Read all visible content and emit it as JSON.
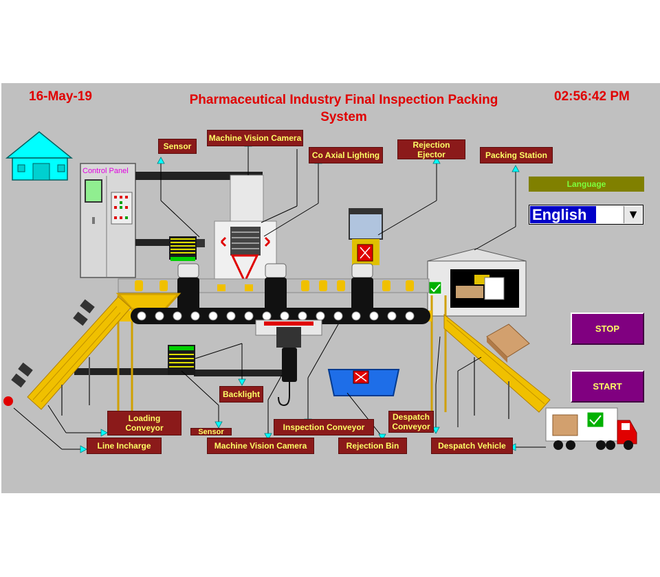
{
  "header": {
    "date": "16-May-19",
    "title": "Pharmaceutical Industry Final Inspection Packing System",
    "time": "02:56:42 PM"
  },
  "labels": {
    "sensor_top": "Sensor",
    "machine_vision_top": "Machine Vision Camera",
    "co_axial": "Co Axial Lighting",
    "rejection_ejector": "Rejection Ejector",
    "packing_station": "Packing Station",
    "backlight": "Backlight",
    "loading_conveyor": "Loading Conveyor",
    "sensor_bottom": "Sensor",
    "inspection_conveyor": "Inspection Conveyor",
    "despatch_conveyor": "Despatch Conveyor",
    "line_incharge": "Line Incharge",
    "machine_vision_bottom": "Machine Vision Camera",
    "rejection_bin": "Rejection Bin",
    "despatch_vehicle": "Despatch Vehicle",
    "control_panel": "Control Panel"
  },
  "language": {
    "label": "Language",
    "selected": "English"
  },
  "buttons": {
    "stop": "STOP",
    "start": "START"
  },
  "colors": {
    "panel_bg": "#c0c0c0",
    "label_bg": "#8b1a1a",
    "label_text": "#ffff66",
    "header_text": "#e00000",
    "button_bg": "#800080",
    "language_bar": "#808000"
  }
}
